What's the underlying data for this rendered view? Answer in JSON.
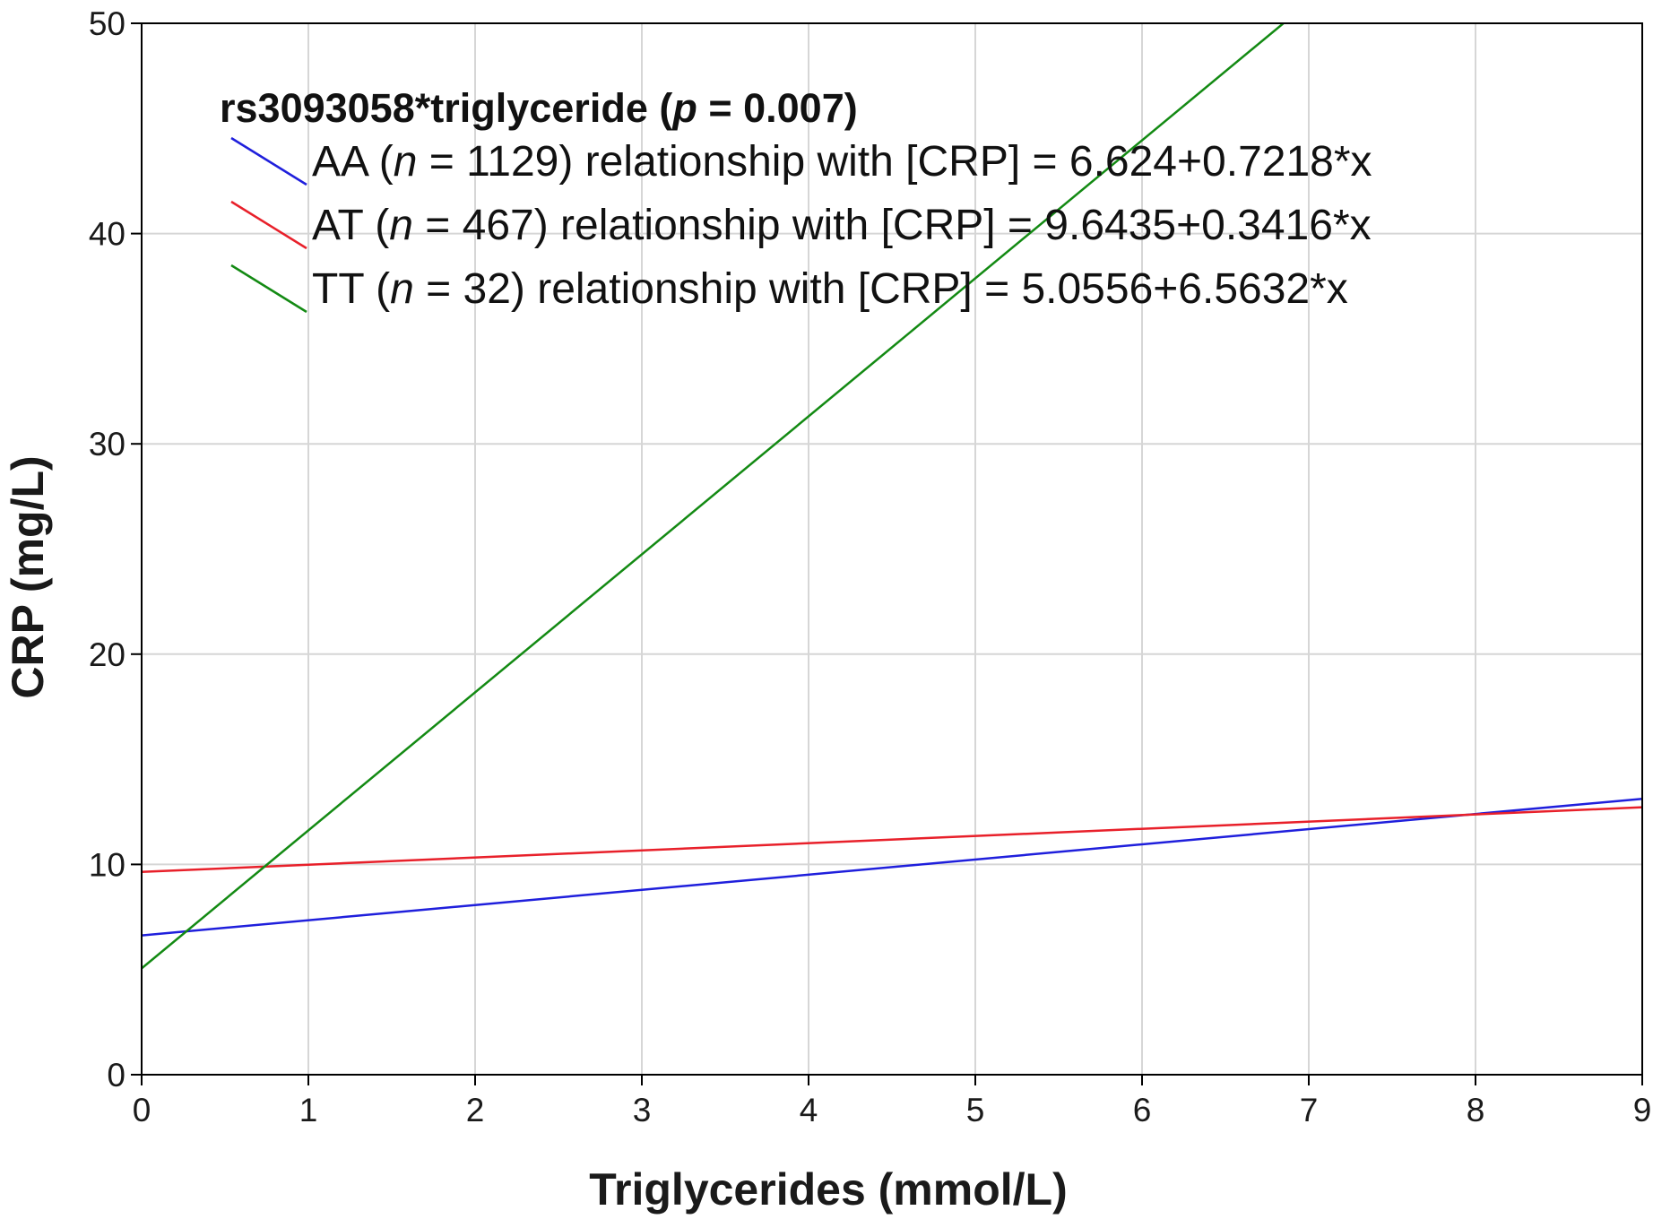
{
  "chart_data": {
    "type": "line",
    "xlabel": "Triglycerides (mmol/L)",
    "ylabel": "CRP (mg/L)",
    "xlim": [
      0,
      9
    ],
    "ylim": [
      0,
      50
    ],
    "x_ticks": [
      "0",
      "1",
      "2",
      "3",
      "4",
      "5",
      "6",
      "7",
      "8",
      "9"
    ],
    "y_ticks": [
      "0",
      "10",
      "20",
      "30",
      "40",
      "50"
    ],
    "grid": true,
    "legend": {
      "placement": "top-left",
      "title_prefix": "rs3093058*triglyceride (",
      "title_p": "p",
      "title_suffix": " = 0.007)"
    },
    "series": [
      {
        "genotype": "AA",
        "n_symbol": "n",
        "label_mid": " = 1129) relationship with [CRP] = 6.624+0.7218*x",
        "color": "#1f1fdc",
        "intercept": 6.624,
        "slope": 0.7218,
        "x": [
          0,
          9
        ],
        "y": [
          6.624,
          13.12
        ]
      },
      {
        "genotype": "AT",
        "n_symbol": "n",
        "label_mid": " = 467) relationship with [CRP] = 9.6435+0.3416*x",
        "color": "#e8202a",
        "intercept": 9.6435,
        "slope": 0.3416,
        "x": [
          0,
          9
        ],
        "y": [
          9.6435,
          12.718
        ]
      },
      {
        "genotype": "TT",
        "n_symbol": "n",
        "label_mid": " = 32) relationship with [CRP] = 5.0556+6.5632*x",
        "color": "#138a13",
        "intercept": 5.0556,
        "slope": 6.5632,
        "x": [
          0,
          6.848
        ],
        "y": [
          5.0556,
          50
        ]
      }
    ]
  }
}
